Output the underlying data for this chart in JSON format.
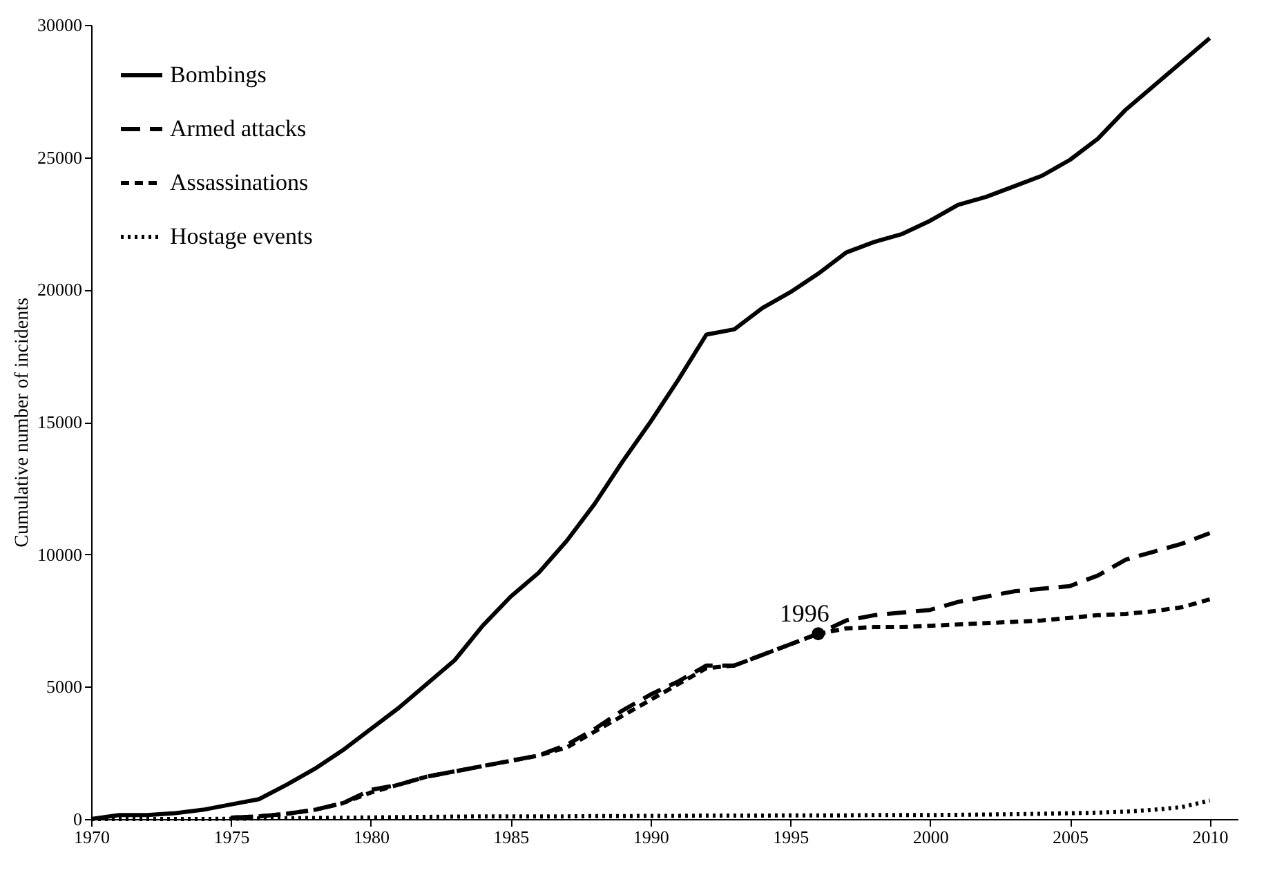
{
  "chart_data": {
    "type": "line",
    "ylabel": "Cumulative number of incidents",
    "x": [
      1970,
      1971,
      1972,
      1973,
      1974,
      1975,
      1976,
      1977,
      1978,
      1979,
      1980,
      1981,
      1982,
      1983,
      1984,
      1985,
      1986,
      1987,
      1988,
      1989,
      1990,
      1991,
      1992,
      1993,
      1994,
      1995,
      1996,
      1997,
      1998,
      1999,
      2000,
      2001,
      2002,
      2003,
      2004,
      2005,
      2006,
      2007,
      2008,
      2009,
      2010
    ],
    "series": [
      {
        "name": "Bombings",
        "color": "#000000",
        "line_style": "solid",
        "values": [
          0,
          150,
          150,
          220,
          350,
          550,
          750,
          1300,
          1900,
          2600,
          3400,
          4200,
          5100,
          6000,
          7300,
          8400,
          9300,
          10500,
          11900,
          13500,
          15000,
          16600,
          18300,
          18500,
          19300,
          19900,
          20600,
          21400,
          21800,
          22100,
          22600,
          23200,
          23500,
          23900,
          24300,
          24900,
          25700,
          26800,
          27700,
          28600,
          29500
        ]
      },
      {
        "name": "Armed attacks",
        "color": "#000000",
        "line_style": "dashed",
        "values": [
          null,
          null,
          null,
          null,
          null,
          50,
          100,
          200,
          350,
          600,
          1100,
          1300,
          1600,
          1800,
          2000,
          2200,
          2400,
          2800,
          3400,
          4100,
          4700,
          5200,
          5800,
          5800,
          6200,
          6600,
          7000,
          7500,
          7700,
          7800,
          7900,
          8200,
          8400,
          8600,
          8700,
          8800,
          9200,
          9800,
          10100,
          10400,
          10800
        ]
      },
      {
        "name": "Assassinations",
        "color": "#000000",
        "line_style": "dashed",
        "values": [
          null,
          null,
          null,
          null,
          null,
          50,
          100,
          200,
          350,
          600,
          1000,
          1300,
          1600,
          1800,
          2000,
          2200,
          2400,
          2700,
          3300,
          3900,
          4500,
          5100,
          5700,
          5800,
          6200,
          6600,
          7000,
          7200,
          7250,
          7250,
          7300,
          7350,
          7400,
          7450,
          7500,
          7600,
          7700,
          7750,
          7850,
          8000,
          8300
        ]
      },
      {
        "name": "Hostage events",
        "color": "#000000",
        "line_style": "dotted",
        "values": [
          0,
          0,
          0,
          0,
          0,
          10,
          20,
          30,
          40,
          50,
          60,
          70,
          80,
          90,
          100,
          100,
          100,
          100,
          110,
          110,
          120,
          120,
          130,
          130,
          130,
          140,
          140,
          140,
          150,
          150,
          150,
          160,
          170,
          180,
          200,
          220,
          240,
          280,
          350,
          450,
          700
        ]
      }
    ],
    "xlim": [
      1970,
      2011
    ],
    "xticks": [
      1970,
      1975,
      1980,
      1985,
      1990,
      1995,
      2000,
      2005,
      2010
    ],
    "ylim": [
      0,
      30000
    ],
    "yticks": [
      0,
      5000,
      10000,
      15000,
      20000,
      25000,
      30000
    ],
    "annotations": [
      {
        "text": "1996",
        "x": 1996,
        "y": 7000
      }
    ],
    "legend": "top left",
    "grid": false,
    "marker": "none"
  }
}
